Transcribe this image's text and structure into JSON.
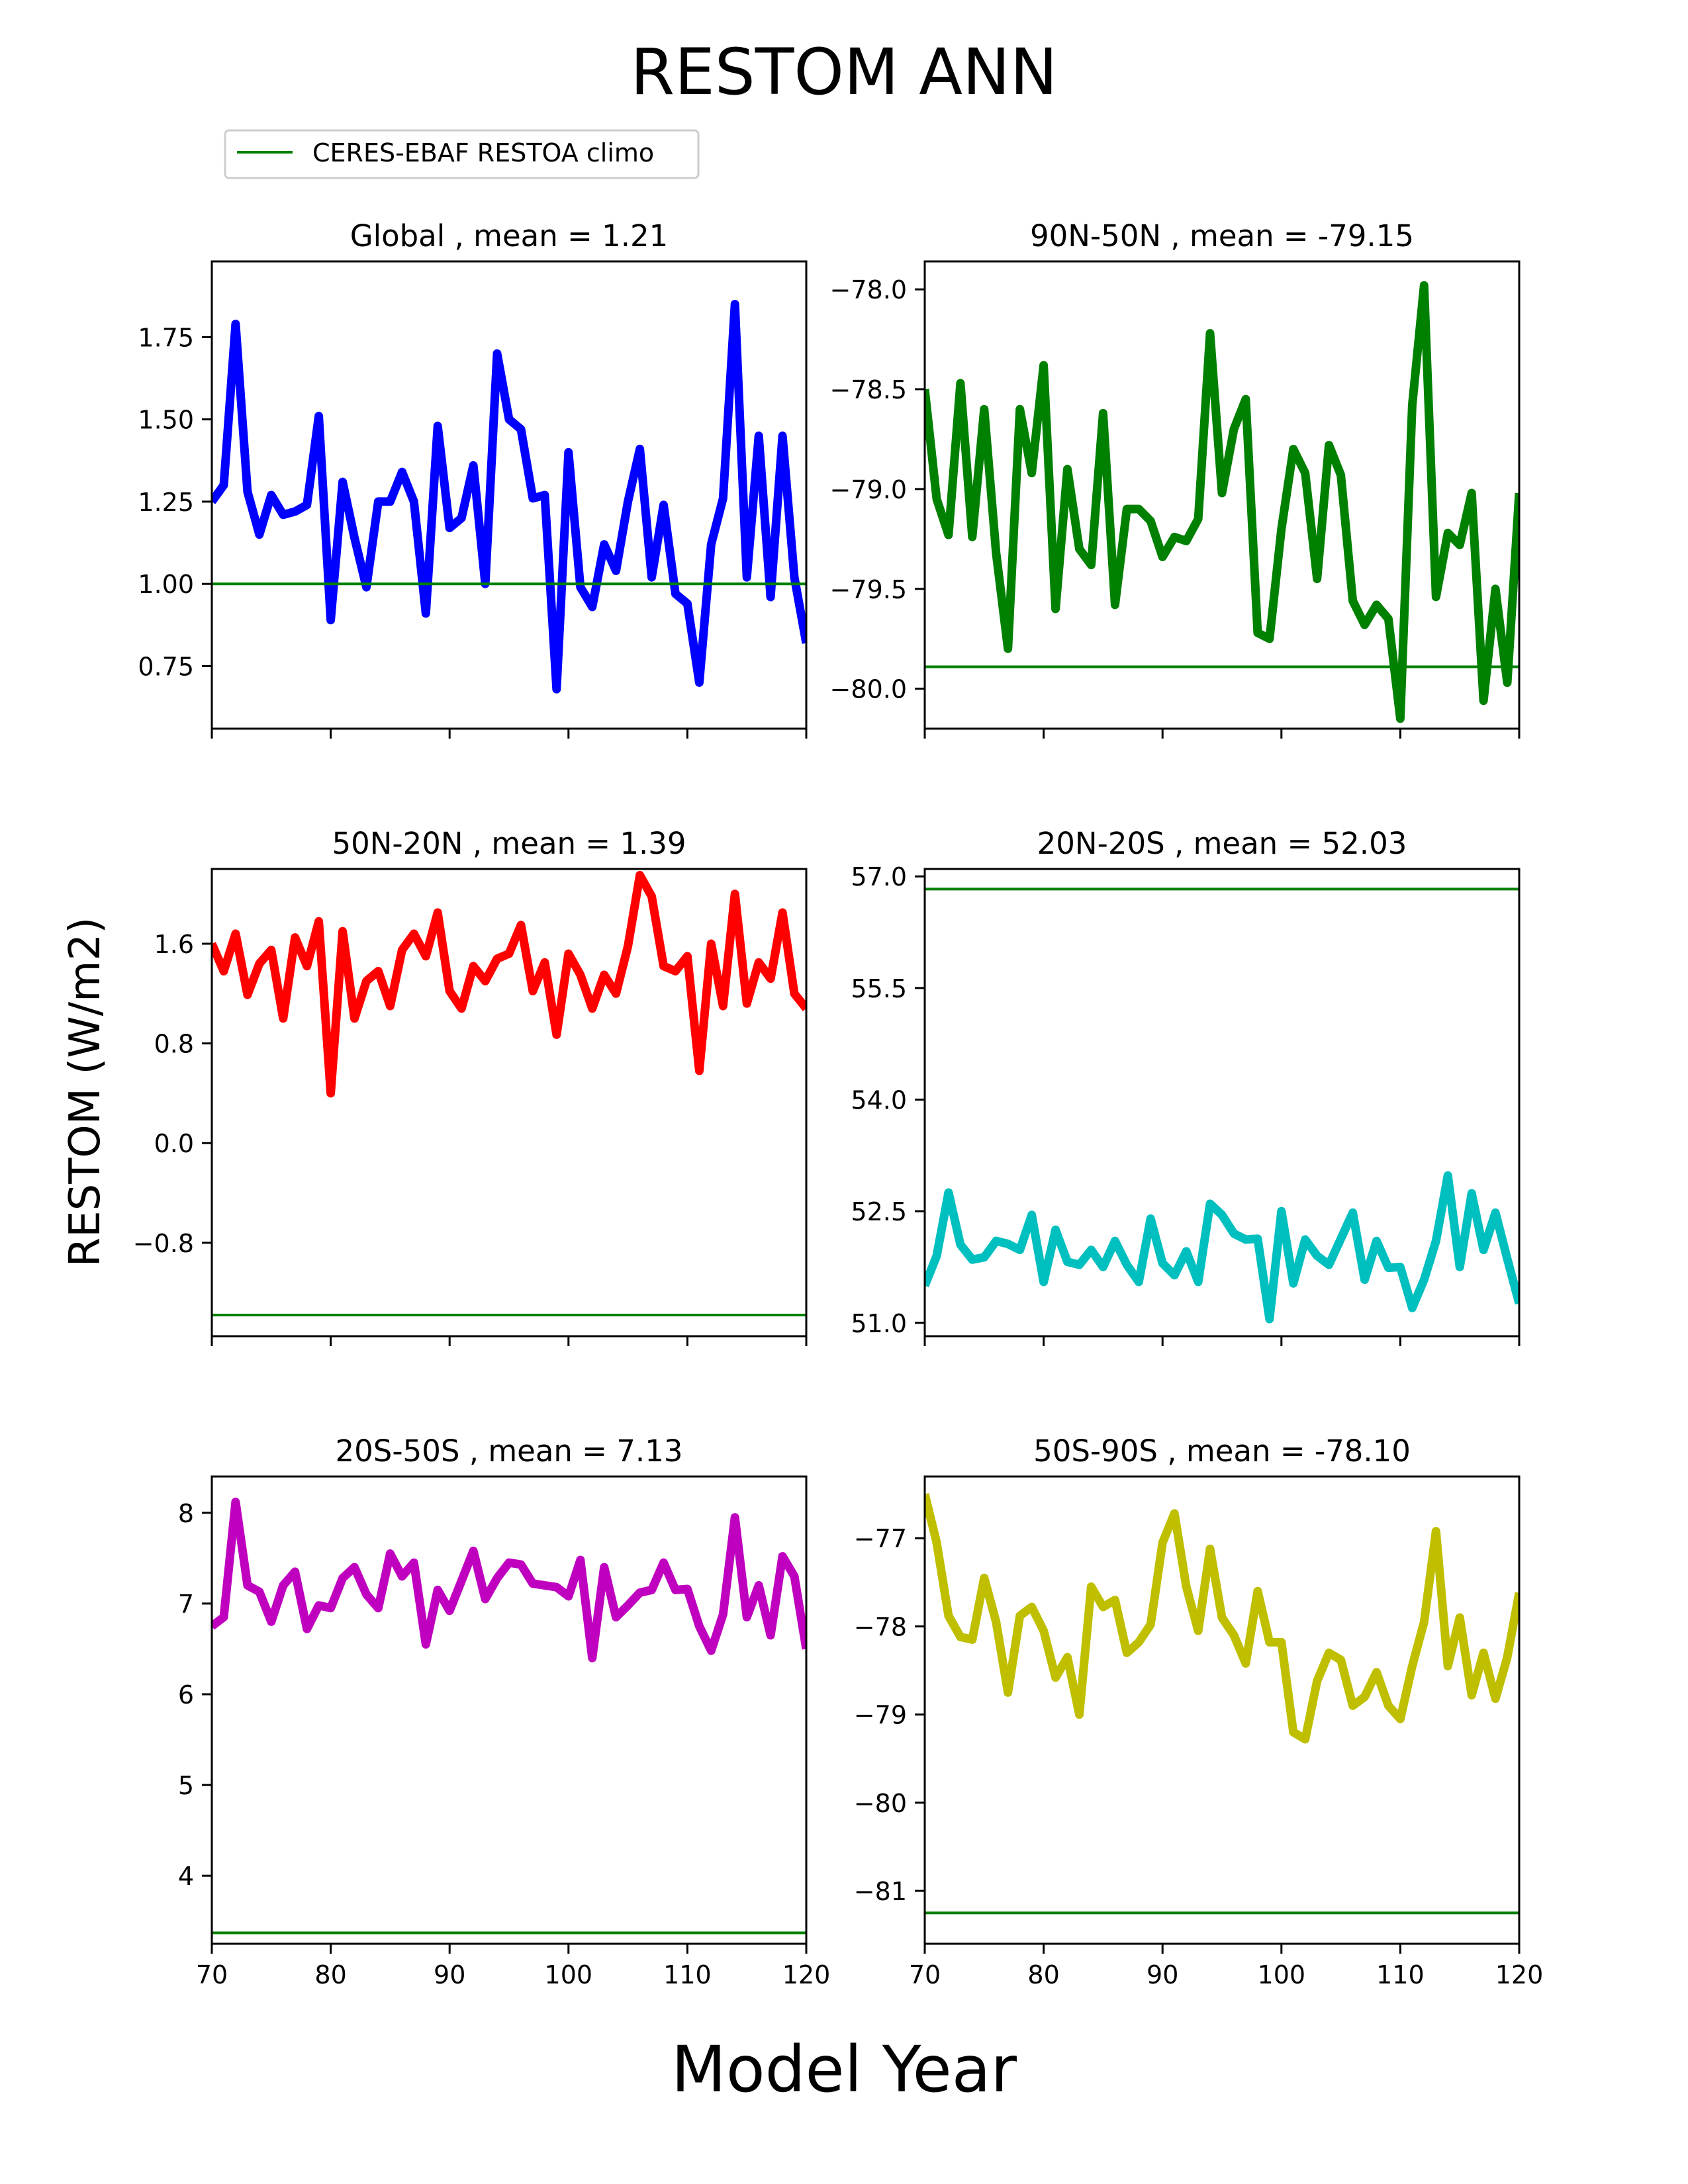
{
  "figure": {
    "title": "RESTOM ANN",
    "xlabel": "Model Year",
    "ylabel": "RESTOM (W/m2)"
  },
  "legend": {
    "label": "CERES-EBAF RESTOA climo",
    "color": "#008000",
    "location": "upper-left"
  },
  "chart_data": [
    {
      "type": "line",
      "title": "Global , mean = 1.21",
      "color": "#0000ff",
      "xlim": [
        70,
        120
      ],
      "ylim": [
        0.56,
        1.98
      ],
      "xticks": [
        70,
        80,
        90,
        100,
        110,
        120
      ],
      "xtick_labels": [],
      "yticks": [
        0.75,
        1.0,
        1.25,
        1.5,
        1.75
      ],
      "ytick_labels": [
        "0.75",
        "1.00",
        "1.25",
        "1.50",
        "1.75"
      ],
      "reference": 1.0,
      "x": [
        70,
        71,
        72,
        73,
        74,
        75,
        76,
        77,
        78,
        79,
        80,
        81,
        82,
        83,
        84,
        85,
        86,
        87,
        88,
        89,
        90,
        91,
        92,
        93,
        94,
        95,
        96,
        97,
        98,
        99,
        100,
        101,
        102,
        103,
        104,
        105,
        106,
        107,
        108,
        109,
        110,
        111,
        112,
        113,
        114,
        115,
        116,
        117,
        118,
        119,
        120
      ],
      "values": [
        1.25,
        1.3,
        1.79,
        1.28,
        1.15,
        1.27,
        1.21,
        1.22,
        1.24,
        1.51,
        0.89,
        1.31,
        1.14,
        0.99,
        1.25,
        1.25,
        1.34,
        1.25,
        0.91,
        1.48,
        1.17,
        1.2,
        1.36,
        1.0,
        1.7,
        1.5,
        1.47,
        1.26,
        1.27,
        0.68,
        1.4,
        0.99,
        0.93,
        1.12,
        1.04,
        1.25,
        1.41,
        1.02,
        1.24,
        0.97,
        0.94,
        0.7,
        1.12,
        1.26,
        1.85,
        1.02,
        1.45,
        0.96,
        1.45,
        1.02,
        0.82
      ]
    },
    {
      "type": "line",
      "title": "90N-50N , mean = -79.15",
      "color": "#008000",
      "xlim": [
        70,
        120
      ],
      "ylim": [
        -80.2,
        -77.86
      ],
      "xticks": [
        70,
        80,
        90,
        100,
        110,
        120
      ],
      "xtick_labels": [],
      "yticks": [
        -80.0,
        -79.5,
        -79.0,
        -78.5,
        -78.0
      ],
      "ytick_labels": [
        "−80.0",
        "−79.5",
        "−79.0",
        "−78.5",
        "−78.0"
      ],
      "reference": -79.89,
      "x": [
        70,
        71,
        72,
        73,
        74,
        75,
        76,
        77,
        78,
        79,
        80,
        81,
        82,
        83,
        84,
        85,
        86,
        87,
        88,
        89,
        90,
        91,
        92,
        93,
        94,
        95,
        96,
        97,
        98,
        99,
        100,
        101,
        102,
        103,
        104,
        105,
        106,
        107,
        108,
        109,
        110,
        111,
        112,
        113,
        114,
        115,
        116,
        117,
        118,
        119,
        120
      ],
      "values": [
        -78.5,
        -79.05,
        -79.23,
        -78.47,
        -79.24,
        -78.6,
        -79.32,
        -79.8,
        -78.6,
        -78.92,
        -78.38,
        -79.6,
        -78.9,
        -79.3,
        -79.38,
        -78.62,
        -79.58,
        -79.1,
        -79.1,
        -79.16,
        -79.34,
        -79.24,
        -79.26,
        -79.15,
        -78.22,
        -79.02,
        -78.7,
        -78.55,
        -79.72,
        -79.75,
        -79.2,
        -78.8,
        -78.92,
        -79.45,
        -78.78,
        -78.93,
        -79.56,
        -79.68,
        -79.58,
        -79.65,
        -80.15,
        -78.58,
        -77.98,
        -79.54,
        -79.22,
        -79.28,
        -79.02,
        -80.06,
        -79.5,
        -79.97,
        -79.02
      ]
    },
    {
      "type": "line",
      "title": "50N-20N , mean = 1.39",
      "color": "#ff0000",
      "xlim": [
        70,
        120
      ],
      "ylim": [
        -1.55,
        2.2
      ],
      "xticks": [
        70,
        80,
        90,
        100,
        110,
        120
      ],
      "xtick_labels": [],
      "yticks": [
        -0.8,
        0.0,
        0.8,
        1.6
      ],
      "ytick_labels": [
        "−0.8",
        "0.0",
        "0.8",
        "1.6"
      ],
      "reference": -1.38,
      "x": [
        70,
        71,
        72,
        73,
        74,
        75,
        76,
        77,
        78,
        79,
        80,
        81,
        82,
        83,
        84,
        85,
        86,
        87,
        88,
        89,
        90,
        91,
        92,
        93,
        94,
        95,
        96,
        97,
        98,
        99,
        100,
        101,
        102,
        103,
        104,
        105,
        106,
        107,
        108,
        109,
        110,
        111,
        112,
        113,
        114,
        115,
        116,
        117,
        118,
        119,
        120
      ],
      "values": [
        1.6,
        1.38,
        1.68,
        1.19,
        1.44,
        1.55,
        1.0,
        1.65,
        1.42,
        1.78,
        0.4,
        1.7,
        1.0,
        1.3,
        1.38,
        1.1,
        1.55,
        1.68,
        1.5,
        1.85,
        1.22,
        1.08,
        1.42,
        1.3,
        1.48,
        1.52,
        1.75,
        1.22,
        1.45,
        0.87,
        1.52,
        1.35,
        1.08,
        1.35,
        1.2,
        1.58,
        2.15,
        1.98,
        1.42,
        1.38,
        1.5,
        0.58,
        1.6,
        1.1,
        2.0,
        1.12,
        1.45,
        1.32,
        1.85,
        1.2,
        1.08
      ]
    },
    {
      "type": "line",
      "title": "20N-20S , mean = 52.03",
      "color": "#00bfbf",
      "xlim": [
        70,
        120
      ],
      "ylim": [
        50.82,
        57.1
      ],
      "xticks": [
        70,
        80,
        90,
        100,
        110,
        120
      ],
      "xtick_labels": [],
      "yticks": [
        51.0,
        52.5,
        54.0,
        55.5,
        57.0
      ],
      "ytick_labels": [
        "51.0",
        "52.5",
        "54.0",
        "55.5",
        "57.0"
      ],
      "reference": 56.83,
      "x": [
        70,
        71,
        72,
        73,
        74,
        75,
        76,
        77,
        78,
        79,
        80,
        81,
        82,
        83,
        84,
        85,
        86,
        87,
        88,
        89,
        90,
        91,
        92,
        93,
        94,
        95,
        96,
        97,
        98,
        99,
        100,
        101,
        102,
        103,
        104,
        105,
        106,
        107,
        108,
        109,
        110,
        111,
        112,
        113,
        114,
        115,
        116,
        117,
        118,
        119,
        120
      ],
      "values": [
        51.5,
        51.9,
        52.75,
        52.05,
        51.85,
        51.88,
        52.1,
        52.06,
        51.98,
        52.45,
        51.55,
        52.25,
        51.82,
        51.78,
        51.98,
        51.75,
        52.1,
        51.78,
        51.55,
        52.4,
        51.8,
        51.64,
        51.96,
        51.55,
        52.6,
        52.45,
        52.2,
        52.12,
        52.13,
        51.05,
        52.5,
        51.53,
        52.12,
        51.9,
        51.78,
        52.13,
        52.48,
        51.58,
        52.1,
        51.74,
        51.75,
        51.2,
        51.58,
        52.1,
        52.98,
        51.75,
        52.74,
        51.98,
        52.48,
        51.86,
        51.26
      ]
    },
    {
      "type": "line",
      "title": "20S-50S , mean = 7.13",
      "color": "#bf00bf",
      "xlim": [
        70,
        120
      ],
      "ylim": [
        3.25,
        8.4
      ],
      "xticks": [
        70,
        80,
        90,
        100,
        110,
        120
      ],
      "xtick_labels": [
        "70",
        "80",
        "90",
        "100",
        "110",
        "120"
      ],
      "yticks": [
        4,
        5,
        6,
        7,
        8
      ],
      "ytick_labels": [
        "4",
        "5",
        "6",
        "7",
        "8"
      ],
      "reference": 3.37,
      "x": [
        70,
        71,
        72,
        73,
        74,
        75,
        76,
        77,
        78,
        79,
        80,
        81,
        82,
        83,
        84,
        85,
        86,
        87,
        88,
        89,
        90,
        91,
        92,
        93,
        94,
        95,
        96,
        97,
        98,
        99,
        100,
        101,
        102,
        103,
        104,
        105,
        106,
        107,
        108,
        109,
        110,
        111,
        112,
        113,
        114,
        115,
        116,
        117,
        118,
        119,
        120
      ],
      "values": [
        6.75,
        6.85,
        8.12,
        7.2,
        7.13,
        6.8,
        7.2,
        7.35,
        6.72,
        6.98,
        6.95,
        7.28,
        7.4,
        7.1,
        6.95,
        7.55,
        7.3,
        7.45,
        6.55,
        7.15,
        6.92,
        7.25,
        7.58,
        7.05,
        7.28,
        7.45,
        7.43,
        7.22,
        7.2,
        7.18,
        7.08,
        7.48,
        6.4,
        7.4,
        6.85,
        6.98,
        7.12,
        7.15,
        7.45,
        7.15,
        7.16,
        6.75,
        6.48,
        6.88,
        7.95,
        6.85,
        7.2,
        6.65,
        7.52,
        7.3,
        6.5
      ]
    },
    {
      "type": "line",
      "title": "50S-90S , mean = -78.10",
      "color": "#bfbf00",
      "xlim": [
        70,
        120
      ],
      "ylim": [
        -81.6,
        -76.3
      ],
      "xticks": [
        70,
        80,
        90,
        100,
        110,
        120
      ],
      "xtick_labels": [
        "70",
        "80",
        "90",
        "100",
        "110",
        "120"
      ],
      "yticks": [
        -81,
        -80,
        -79,
        -78,
        -77
      ],
      "ytick_labels": [
        "−81",
        "−80",
        "−79",
        "−78",
        "−77"
      ],
      "reference": -81.25,
      "x": [
        70,
        71,
        72,
        73,
        74,
        75,
        76,
        77,
        78,
        79,
        80,
        81,
        82,
        83,
        84,
        85,
        86,
        87,
        88,
        89,
        90,
        91,
        92,
        93,
        94,
        95,
        96,
        97,
        98,
        99,
        100,
        101,
        102,
        103,
        104,
        105,
        106,
        107,
        108,
        109,
        110,
        111,
        112,
        113,
        114,
        115,
        116,
        117,
        118,
        119,
        120
      ],
      "values": [
        -76.5,
        -77.05,
        -77.88,
        -78.12,
        -78.15,
        -77.45,
        -77.95,
        -78.75,
        -77.88,
        -77.78,
        -78.05,
        -78.58,
        -78.35,
        -79.0,
        -77.55,
        -77.78,
        -77.7,
        -78.3,
        -78.18,
        -77.98,
        -77.05,
        -76.72,
        -77.55,
        -78.05,
        -77.12,
        -77.9,
        -78.1,
        -78.42,
        -77.6,
        -78.18,
        -78.18,
        -79.2,
        -79.28,
        -78.62,
        -78.3,
        -78.38,
        -78.9,
        -78.8,
        -78.52,
        -78.9,
        -79.05,
        -78.45,
        -77.95,
        -76.92,
        -78.45,
        -77.9,
        -78.78,
        -78.3,
        -78.82,
        -78.35,
        -77.62
      ]
    }
  ]
}
